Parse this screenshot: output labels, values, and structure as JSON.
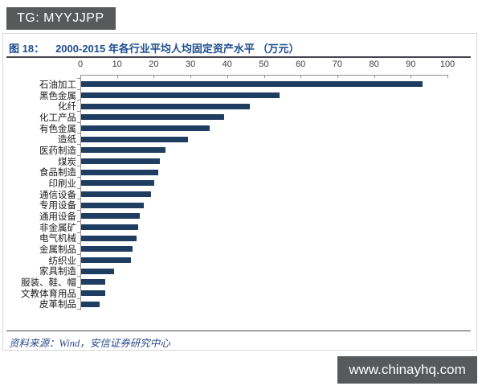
{
  "watermarks": {
    "tg_badge": "TG: MYYJJPP",
    "site_badge": "www.chinayhq.com"
  },
  "figure": {
    "fig_label": "图 18：",
    "fig_title": "2000-2015 年各行业平均人均固定资产水平 （万元）",
    "source": "资料来源：Wind，安信证券研究中心"
  },
  "chart_data": {
    "type": "bar",
    "orientation": "horizontal",
    "title": "2000-2015 年各行业平均人均固定资产水平（万元）",
    "unit": "万元",
    "categories": [
      "石油加工",
      "黑色金属",
      "化纤",
      "化工产品",
      "有色金属",
      "造纸",
      "医药制造",
      "煤炭",
      "食品制造",
      "印刷业",
      "通信设备",
      "专用设备",
      "通用设备",
      "非金属矿",
      "电气机械",
      "金属制品",
      "纺织业",
      "家具制造",
      "服装、鞋、帽",
      "文教体育用品",
      "皮革制品"
    ],
    "values": [
      93,
      54,
      46,
      39,
      35,
      29,
      23,
      21.5,
      21,
      20,
      19,
      17,
      16,
      15.5,
      15,
      14,
      13.5,
      9,
      6.5,
      6.5,
      5
    ],
    "xlim": [
      0,
      100
    ],
    "x_ticks": [
      0,
      10,
      20,
      30,
      40,
      50,
      60,
      70,
      80,
      90,
      100
    ],
    "x_axis_position": "top",
    "grid": false,
    "legend": false,
    "bar_color": "#1f3c61"
  },
  "colors": {
    "badge_bg": "#58595b",
    "badge_text": "#ffffff",
    "title_blue": "#1e4e91",
    "bar_navy": "#1f3c61",
    "rule_dark": "#45454d",
    "axis_gray": "#8f8f8f",
    "source_blue": "#2b4a8b",
    "panel_border": "#d7d7d7"
  }
}
